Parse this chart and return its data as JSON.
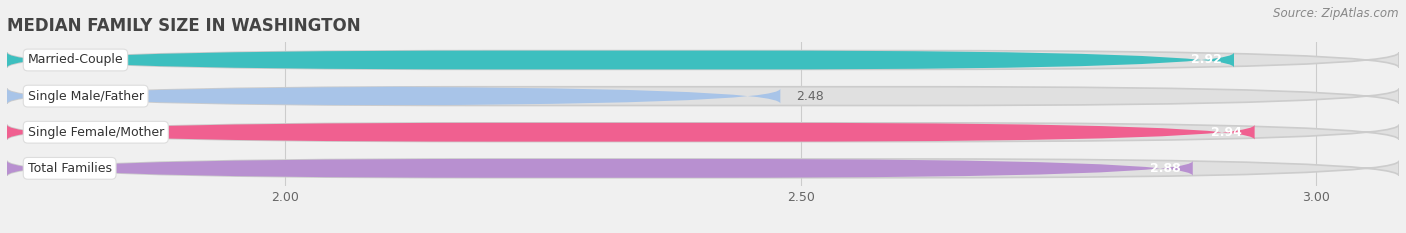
{
  "title": "MEDIAN FAMILY SIZE IN WASHINGTON",
  "source": "Source: ZipAtlas.com",
  "categories": [
    "Married-Couple",
    "Single Male/Father",
    "Single Female/Mother",
    "Total Families"
  ],
  "values": [
    2.92,
    2.48,
    2.94,
    2.88
  ],
  "bar_colors": [
    "#3dbfbf",
    "#a8c4e8",
    "#f06090",
    "#b890d0"
  ],
  "xlim_min": 1.73,
  "xlim_max": 3.08,
  "xticks": [
    2.0,
    2.5,
    3.0
  ],
  "background_color": "#f0f0f0",
  "bar_bg_color": "#e0e0e0",
  "title_fontsize": 12,
  "source_fontsize": 8.5,
  "label_fontsize": 9,
  "value_fontsize": 9,
  "bar_height": 0.52,
  "bar_gap": 0.18
}
